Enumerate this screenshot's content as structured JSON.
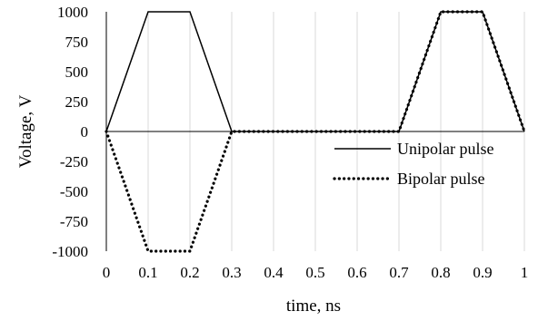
{
  "chart_data": {
    "type": "line",
    "xlabel": "time, ns",
    "ylabel": "Voltage, V",
    "xlim": [
      0,
      1
    ],
    "ylim": [
      -1000,
      1000
    ],
    "x_ticks": [
      "0",
      "0.1",
      "0.2",
      "0.3",
      "0.4",
      "0.5",
      "0.6",
      "0.7",
      "0.8",
      "0.9",
      "1"
    ],
    "y_ticks": [
      "1000",
      "750",
      "500",
      "250",
      "0",
      "-250",
      "-500",
      "-750",
      "-1000"
    ],
    "grid": "vertical",
    "legend_position": "right",
    "series": [
      {
        "name": "Unipolar pulse",
        "style": "solid",
        "color": "#000000",
        "x": [
          0,
          0.1,
          0.2,
          0.3,
          0.7,
          0.8,
          0.9,
          1
        ],
        "y": [
          0,
          1000,
          1000,
          0,
          0,
          1000,
          1000,
          0
        ]
      },
      {
        "name": "Bipolar pulse",
        "style": "dotted",
        "color": "#000000",
        "x": [
          0,
          0.1,
          0.2,
          0.3,
          0.7,
          0.8,
          0.9,
          1
        ],
        "y": [
          0,
          -1000,
          -1000,
          0,
          0,
          1000,
          1000,
          0
        ]
      }
    ]
  }
}
